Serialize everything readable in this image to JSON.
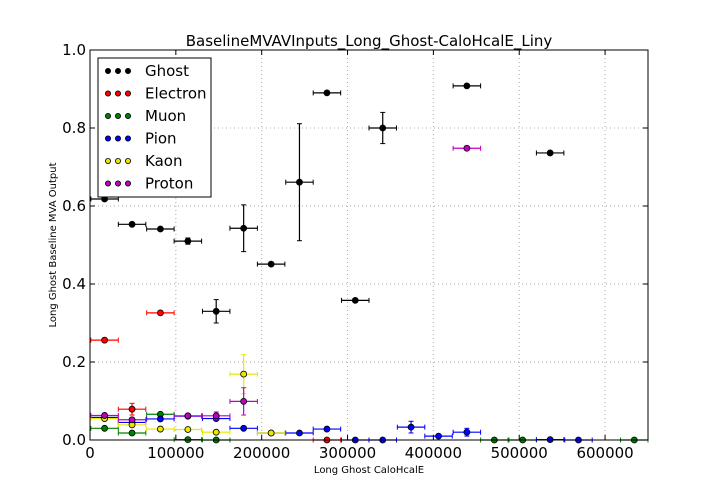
{
  "chart_data": {
    "type": "scatter",
    "title": "BaselineMVAVInputs_Long_Ghost-CaloHcalE_Liny",
    "xlabel": "Long Ghost CaloHcalE",
    "ylabel": "Long Ghost Baseline MVA Output",
    "xlim": [
      0,
      650000
    ],
    "ylim": [
      0.0,
      1.0
    ],
    "xticks": [
      0,
      100000,
      200000,
      300000,
      400000,
      500000,
      600000
    ],
    "xtick_labels": [
      "0",
      "100000",
      "200000",
      "300000",
      "400000",
      "500000",
      "600000"
    ],
    "yticks": [
      0.0,
      0.2,
      0.4,
      0.6,
      0.8,
      1.0
    ],
    "ytick_labels": [
      "0.0",
      "0.2",
      "0.4",
      "0.6",
      "0.8",
      "1.0"
    ],
    "grid": true,
    "legend_position": "top-left",
    "series": [
      {
        "name": "Ghost",
        "color": "#000000",
        "points": [
          {
            "x": 17000,
            "y": 0.618,
            "xerr": 16000,
            "yerr": 0
          },
          {
            "x": 49000,
            "y": 0.553,
            "xerr": 16000,
            "yerr": 0
          },
          {
            "x": 82000,
            "y": 0.541,
            "xerr": 16000,
            "yerr": 0
          },
          {
            "x": 114000,
            "y": 0.51,
            "xerr": 16000,
            "yerr": 0.008
          },
          {
            "x": 147000,
            "y": 0.33,
            "xerr": 16000,
            "yerr": 0.03
          },
          {
            "x": 179000,
            "y": 0.543,
            "xerr": 16000,
            "yerr": 0.06
          },
          {
            "x": 211000,
            "y": 0.451,
            "xerr": 16000,
            "yerr": 0
          },
          {
            "x": 244000,
            "y": 0.661,
            "xerr": 16000,
            "yerr": 0.15
          },
          {
            "x": 276000,
            "y": 0.89,
            "xerr": 16000,
            "yerr": 0
          },
          {
            "x": 309000,
            "y": 0.358,
            "xerr": 16000,
            "yerr": 0
          },
          {
            "x": 341000,
            "y": 0.8,
            "xerr": 16000,
            "yerr": 0.04
          },
          {
            "x": 439000,
            "y": 0.908,
            "xerr": 16000,
            "yerr": 0
          },
          {
            "x": 536000,
            "y": 0.736,
            "xerr": 16000,
            "yerr": 0
          }
        ]
      },
      {
        "name": "Electron",
        "color": "#ff0000",
        "points": [
          {
            "x": 17000,
            "y": 0.256,
            "xerr": 16000,
            "yerr": 0
          },
          {
            "x": 49000,
            "y": 0.079,
            "xerr": 16000,
            "yerr": 0.015
          },
          {
            "x": 82000,
            "y": 0.326,
            "xerr": 16000,
            "yerr": 0
          },
          {
            "x": 276000,
            "y": 0.0,
            "xerr": 16000,
            "yerr": 0
          }
        ]
      },
      {
        "name": "Muon",
        "color": "#008000",
        "points": [
          {
            "x": 17000,
            "y": 0.03,
            "xerr": 16000,
            "yerr": 0
          },
          {
            "x": 49000,
            "y": 0.018,
            "xerr": 16000,
            "yerr": 0
          },
          {
            "x": 82000,
            "y": 0.066,
            "xerr": 16000,
            "yerr": 0
          },
          {
            "x": 114000,
            "y": 0.001,
            "xerr": 16000,
            "yerr": 0
          },
          {
            "x": 147000,
            "y": 0.0,
            "xerr": 16000,
            "yerr": 0
          },
          {
            "x": 471000,
            "y": 0.0,
            "xerr": 16000,
            "yerr": 0
          },
          {
            "x": 504000,
            "y": 0.0,
            "xerr": 16000,
            "yerr": 0
          },
          {
            "x": 634000,
            "y": 0.0,
            "xerr": 16000,
            "yerr": 0
          }
        ]
      },
      {
        "name": "Pion",
        "color": "#0000ff",
        "points": [
          {
            "x": 17000,
            "y": 0.058,
            "xerr": 16000,
            "yerr": 0
          },
          {
            "x": 49000,
            "y": 0.045,
            "xerr": 16000,
            "yerr": 0.01
          },
          {
            "x": 82000,
            "y": 0.054,
            "xerr": 16000,
            "yerr": 0
          },
          {
            "x": 114000,
            "y": 0.061,
            "xerr": 16000,
            "yerr": 0
          },
          {
            "x": 147000,
            "y": 0.055,
            "xerr": 16000,
            "yerr": 0
          },
          {
            "x": 179000,
            "y": 0.03,
            "xerr": 16000,
            "yerr": 0
          },
          {
            "x": 211000,
            "y": 0.018,
            "xerr": 16000,
            "yerr": 0
          },
          {
            "x": 244000,
            "y": 0.018,
            "xerr": 16000,
            "yerr": 0
          },
          {
            "x": 276000,
            "y": 0.028,
            "xerr": 16000,
            "yerr": 0
          },
          {
            "x": 309000,
            "y": 0.0,
            "xerr": 16000,
            "yerr": 0
          },
          {
            "x": 341000,
            "y": 0.0,
            "xerr": 16000,
            "yerr": 0
          },
          {
            "x": 374000,
            "y": 0.033,
            "xerr": 16000,
            "yerr": 0.015
          },
          {
            "x": 406000,
            "y": 0.01,
            "xerr": 16000,
            "yerr": 0
          },
          {
            "x": 439000,
            "y": 0.02,
            "xerr": 16000,
            "yerr": 0.01
          },
          {
            "x": 536000,
            "y": 0.001,
            "xerr": 16000,
            "yerr": 0
          },
          {
            "x": 569000,
            "y": 0.0,
            "xerr": 16000,
            "yerr": 0
          }
        ]
      },
      {
        "name": "Kaon",
        "color": "#e8e800",
        "points": [
          {
            "x": 17000,
            "y": 0.055,
            "xerr": 16000,
            "yerr": 0
          },
          {
            "x": 49000,
            "y": 0.039,
            "xerr": 16000,
            "yerr": 0
          },
          {
            "x": 82000,
            "y": 0.028,
            "xerr": 16000,
            "yerr": 0
          },
          {
            "x": 114000,
            "y": 0.027,
            "xerr": 16000,
            "yerr": 0
          },
          {
            "x": 147000,
            "y": 0.02,
            "xerr": 16000,
            "yerr": 0
          },
          {
            "x": 179000,
            "y": 0.169,
            "xerr": 16000,
            "yerr": 0.05
          },
          {
            "x": 211000,
            "y": 0.018,
            "xerr": 16000,
            "yerr": 0
          }
        ]
      },
      {
        "name": "Proton",
        "color": "#bf00bf",
        "points": [
          {
            "x": 17000,
            "y": 0.063,
            "xerr": 16000,
            "yerr": 0
          },
          {
            "x": 49000,
            "y": 0.052,
            "xerr": 16000,
            "yerr": 0
          },
          {
            "x": 114000,
            "y": 0.062,
            "xerr": 16000,
            "yerr": 0
          },
          {
            "x": 147000,
            "y": 0.062,
            "xerr": 16000,
            "yerr": 0.01
          },
          {
            "x": 179000,
            "y": 0.099,
            "xerr": 16000,
            "yerr": 0.035
          },
          {
            "x": 439000,
            "y": 0.748,
            "xerr": 16000,
            "yerr": 0
          }
        ]
      }
    ]
  }
}
